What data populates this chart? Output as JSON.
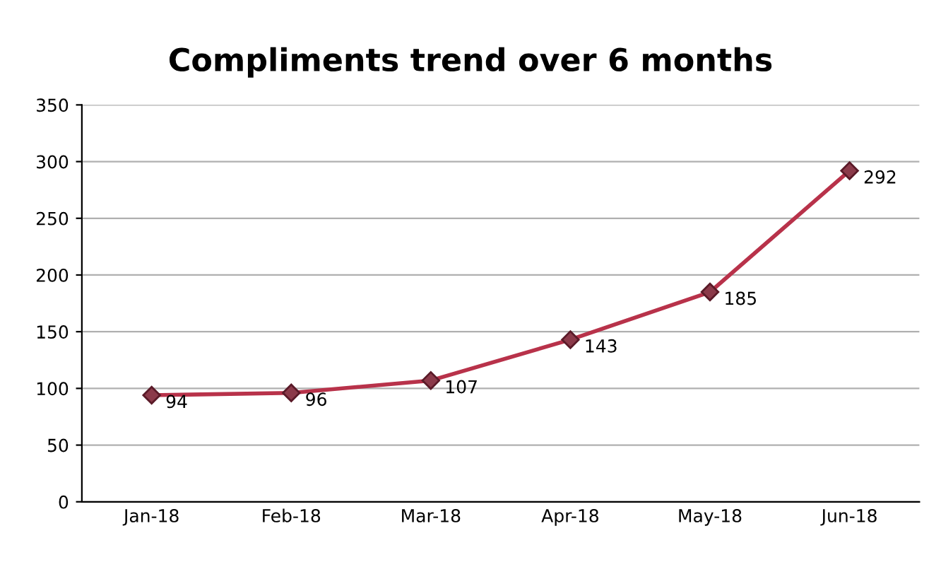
{
  "chart_data": {
    "type": "line",
    "title": "Compliments trend over 6 months",
    "categories": [
      "Jan-18",
      "Feb-18",
      "Mar-18",
      "Apr-18",
      "May-18",
      "Jun-18"
    ],
    "series": [
      {
        "color": "#b8324a",
        "values": [
          94,
          96,
          107,
          143,
          185,
          292
        ]
      }
    ],
    "ylim": [
      0,
      350
    ],
    "yticks": [
      0,
      50,
      100,
      150,
      200,
      250,
      300,
      350
    ],
    "grid": "y",
    "marker": "diamond",
    "line_style": "solid",
    "data_labels": true
  }
}
